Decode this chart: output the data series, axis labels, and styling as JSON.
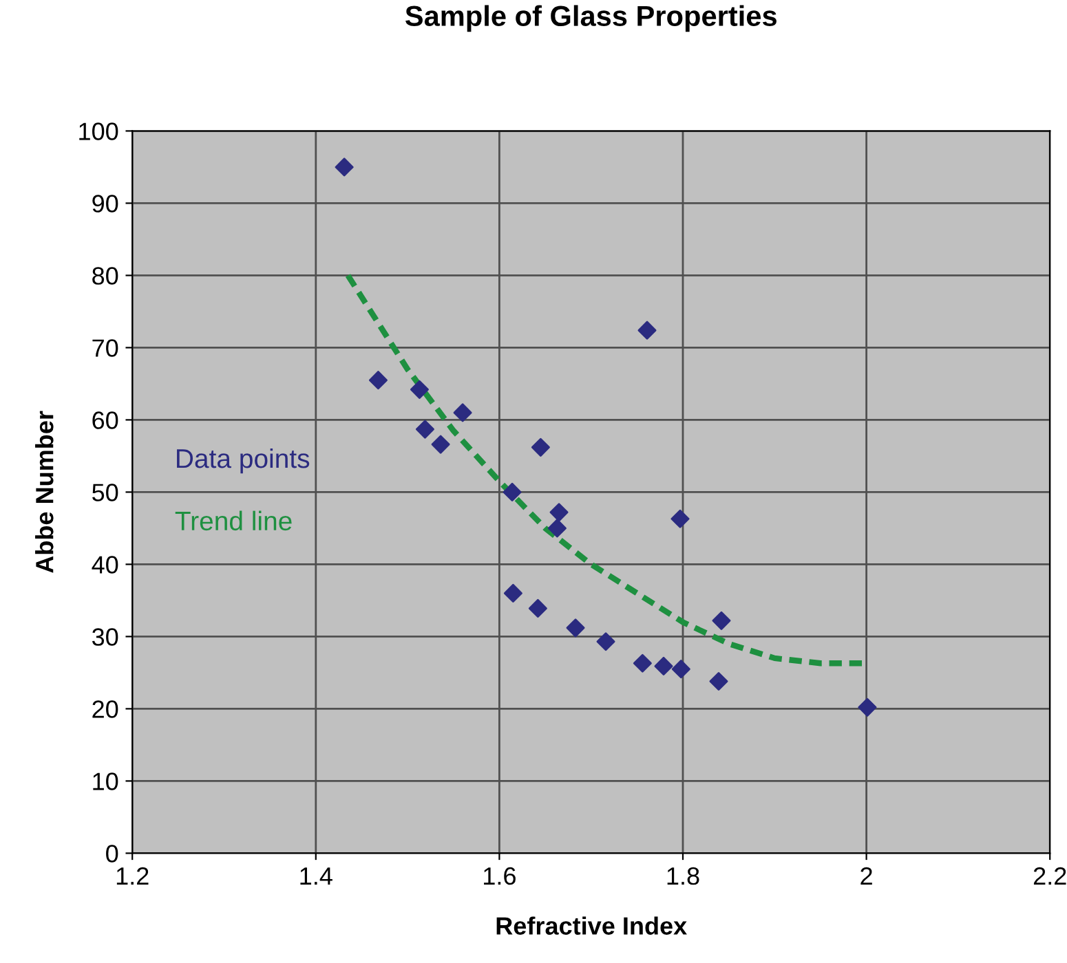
{
  "chart_data": {
    "type": "scatter",
    "title": "Sample of Glass Properties",
    "xlabel": "Refractive Index",
    "ylabel": "Abbe Number",
    "xlim": [
      1.2,
      2.2
    ],
    "xticks": [
      1.2,
      1.4,
      1.6,
      1.8,
      2,
      2.2
    ],
    "ylim": [
      0,
      100
    ],
    "yticks": [
      0,
      10,
      20,
      30,
      40,
      50,
      60,
      70,
      80,
      90,
      100
    ],
    "grid": true,
    "legend": "left",
    "series": [
      {
        "name": "Data points",
        "marker": "diamond",
        "color": "#2b2b80",
        "x": [
          1.431,
          1.468,
          1.513,
          1.519,
          1.536,
          1.56,
          1.614,
          1.615,
          1.642,
          1.645,
          1.663,
          1.665,
          1.683,
          1.716,
          1.756,
          1.761,
          1.779,
          1.797,
          1.798,
          1.839,
          1.842,
          2.001
        ],
        "values": [
          95,
          65.5,
          64.2,
          58.7,
          56.6,
          61,
          50,
          36,
          33.9,
          56.2,
          45,
          47.2,
          31.2,
          29.3,
          26.3,
          72.4,
          25.9,
          46.3,
          25.5,
          23.8,
          32.2,
          20.2
        ]
      },
      {
        "name": "Trend line",
        "type": "line",
        "line_style": "dashed",
        "marker": "none",
        "color": "#1e9040",
        "x": [
          1.435,
          1.5,
          1.55,
          1.6,
          1.65,
          1.7,
          1.75,
          1.8,
          1.85,
          1.9,
          1.95,
          2.0
        ],
        "values": [
          80,
          67,
          58.5,
          51.5,
          45,
          40,
          36,
          32,
          29,
          27,
          26.3,
          26.3
        ]
      }
    ]
  }
}
